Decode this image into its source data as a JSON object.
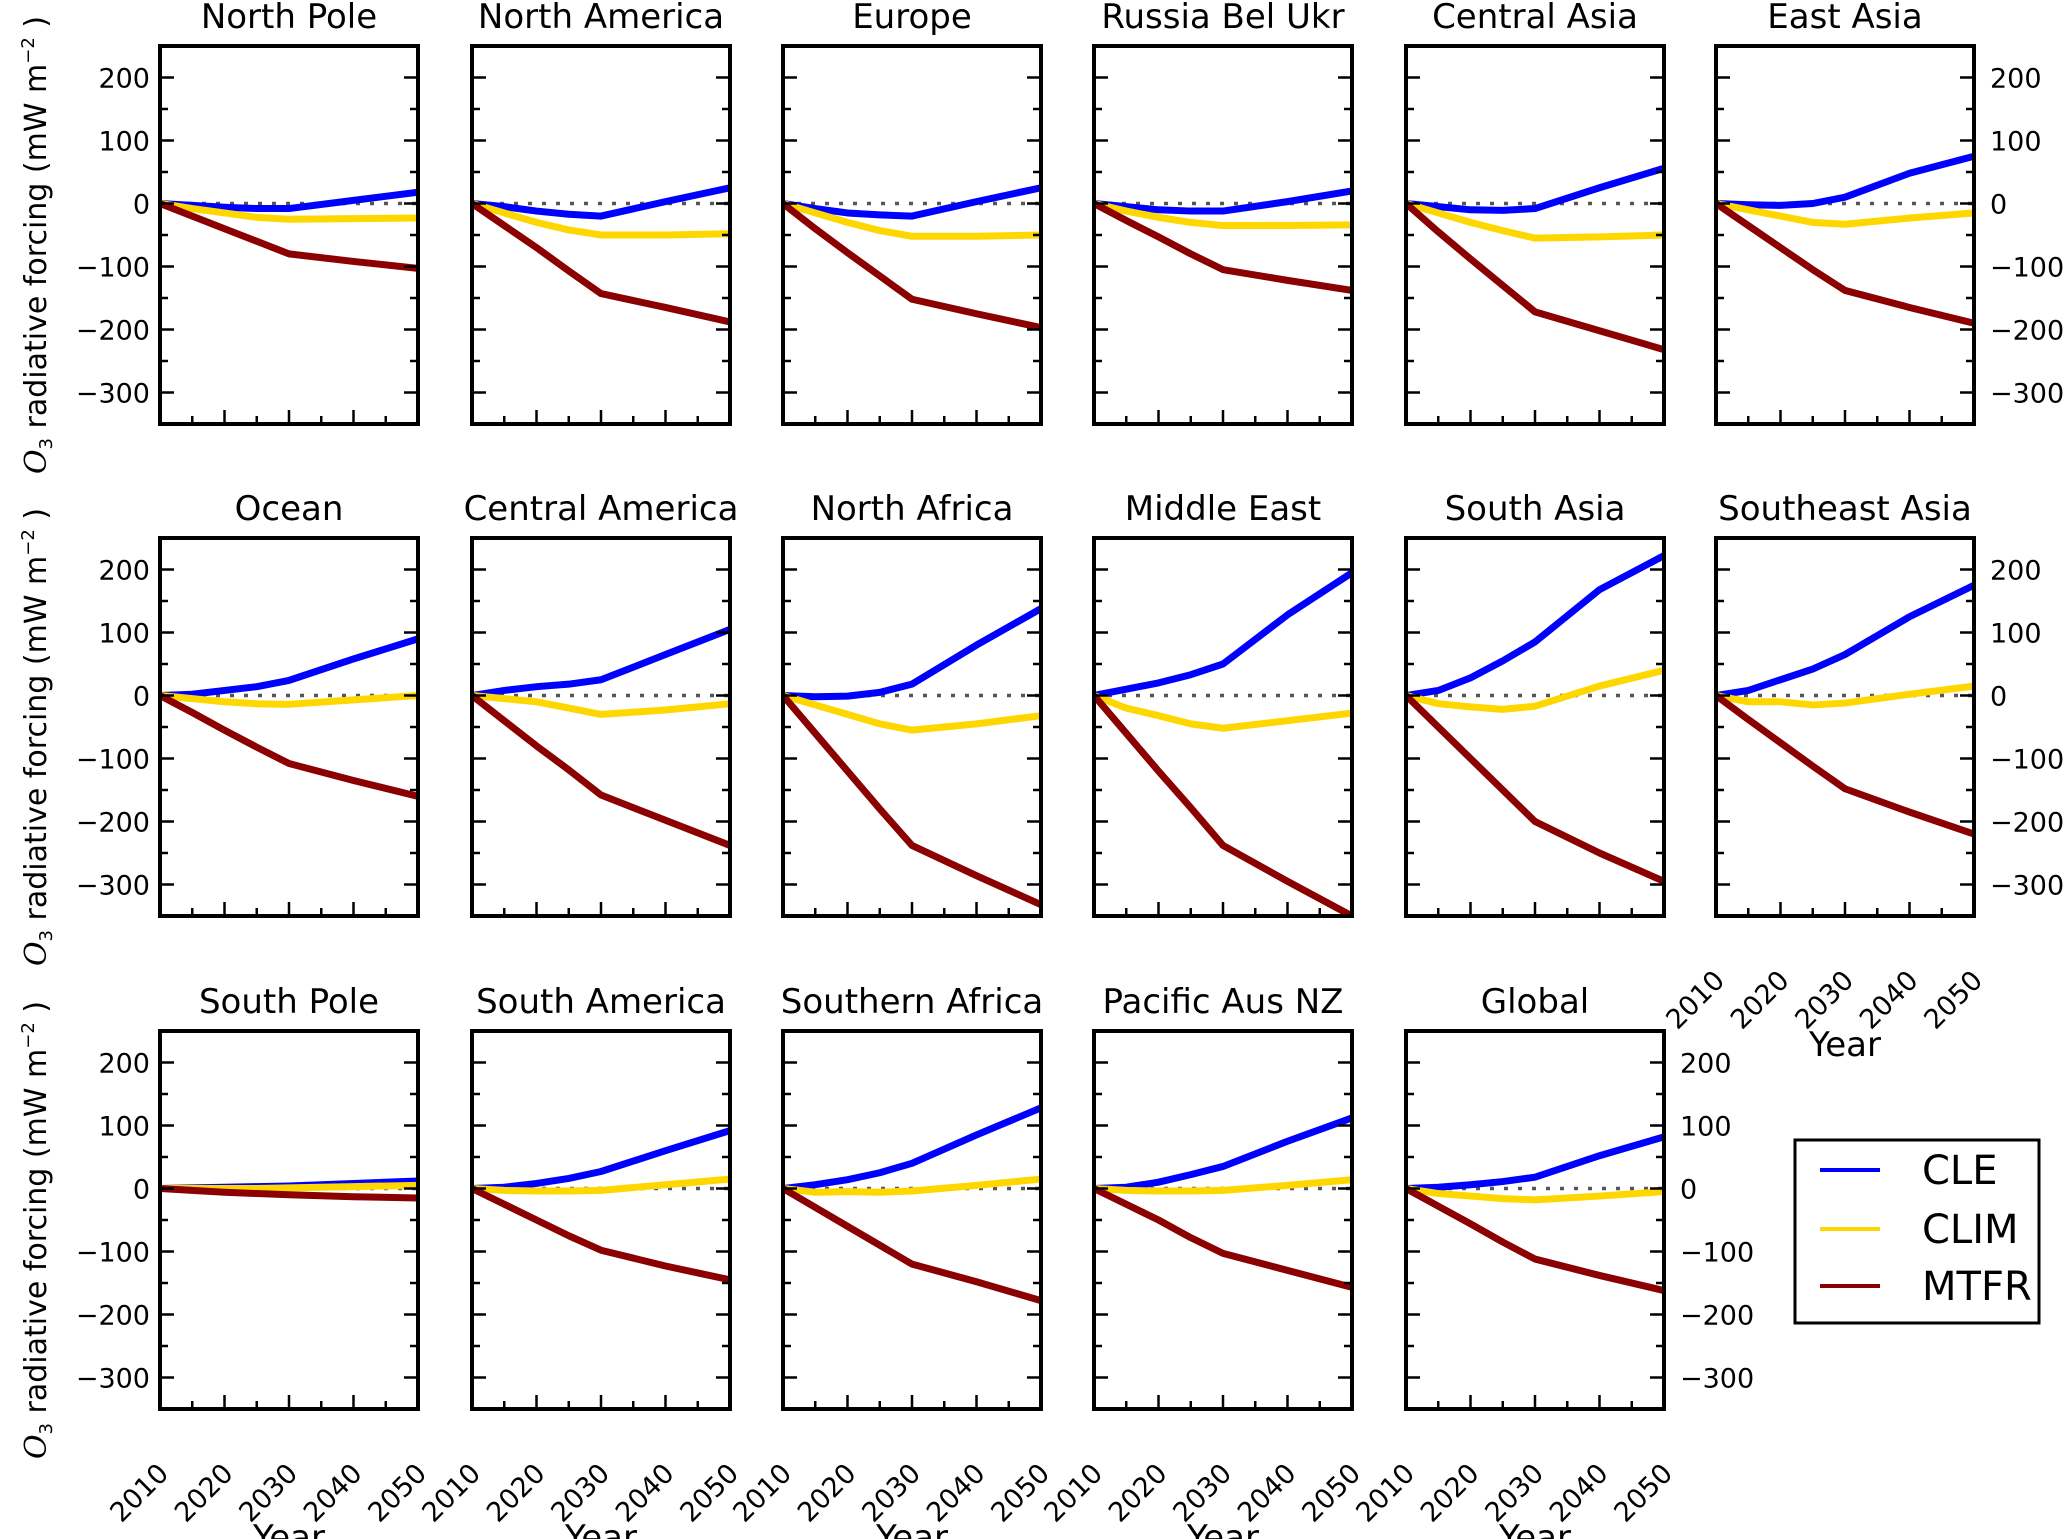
{
  "figure": {
    "ylabel_prefix": "O",
    "ylabel_sub": "3",
    "ylabel_text": "radiative forcing",
    "ylabel_unit": "(mW m",
    "ylabel_unit_sup": "−2",
    "ylabel_unit_close": ")",
    "xlabel": "Year"
  },
  "legend": {
    "location": "lower-right",
    "items": [
      {
        "label": "CLE",
        "color": "#0000ff"
      },
      {
        "label": "CLIM",
        "color": "#ffd700"
      },
      {
        "label": "MTFR",
        "color": "#8b0000"
      }
    ]
  },
  "chart_data": {
    "type": "line",
    "x": [
      2010,
      2015,
      2020,
      2025,
      2030,
      2040,
      2050
    ],
    "xticks": [
      "2010",
      "2020",
      "2030",
      "2040",
      "2050"
    ],
    "yticks": [
      "200",
      "100",
      "0",
      "−100",
      "−200",
      "−300"
    ],
    "ylim": [
      -350,
      250
    ],
    "xlim": [
      2010,
      2050
    ],
    "xlabel": "Year",
    "ylabel": "O3 radiative forcing (mW m^-2)",
    "reference_line": {
      "y": 0,
      "style": "dotted",
      "color": "#555555"
    },
    "series_colors": {
      "CLE": "#0000ff",
      "CLIM": "#ffd700",
      "MTFR": "#8b0000"
    },
    "panels": [
      {
        "title": "North Pole",
        "row": 0,
        "col": 0,
        "series": [
          {
            "name": "CLE",
            "values": [
              0,
              -3,
              -6,
              -8,
              -8,
              5,
              18
            ]
          },
          {
            "name": "CLIM",
            "values": [
              0,
              -8,
              -15,
              -22,
              -25,
              -24,
              -23
            ]
          },
          {
            "name": "MTFR",
            "values": [
              0,
              -20,
              -40,
              -60,
              -80,
              -92,
              -103
            ]
          }
        ]
      },
      {
        "title": "North America",
        "row": 0,
        "col": 1,
        "series": [
          {
            "name": "CLE",
            "values": [
              0,
              -5,
              -12,
              -17,
              -20,
              3,
              25
            ]
          },
          {
            "name": "CLIM",
            "values": [
              0,
              -15,
              -30,
              -42,
              -50,
              -50,
              -48
            ]
          },
          {
            "name": "MTFR",
            "values": [
              0,
              -35,
              -70,
              -107,
              -143,
              -165,
              -188
            ]
          }
        ]
      },
      {
        "title": "Europe",
        "row": 0,
        "col": 2,
        "series": [
          {
            "name": "CLE",
            "values": [
              0,
              -8,
              -15,
              -18,
              -20,
              3,
              25
            ]
          },
          {
            "name": "CLIM",
            "values": [
              0,
              -15,
              -30,
              -43,
              -52,
              -52,
              -50
            ]
          },
          {
            "name": "MTFR",
            "values": [
              0,
              -40,
              -78,
              -115,
              -152,
              -175,
              -197
            ]
          }
        ]
      },
      {
        "title": "Russia Bel Ukr",
        "row": 0,
        "col": 3,
        "series": [
          {
            "name": "CLE",
            "values": [
              0,
              -5,
              -10,
              -12,
              -12,
              3,
              20
            ]
          },
          {
            "name": "CLIM",
            "values": [
              0,
              -12,
              -22,
              -30,
              -35,
              -35,
              -34
            ]
          },
          {
            "name": "MTFR",
            "values": [
              0,
              -27,
              -53,
              -80,
              -105,
              -122,
              -138
            ]
          }
        ]
      },
      {
        "title": "Central Asia",
        "row": 0,
        "col": 4,
        "series": [
          {
            "name": "CLE",
            "values": [
              0,
              -5,
              -10,
              -11,
              -8,
              25,
              56
            ]
          },
          {
            "name": "CLIM",
            "values": [
              0,
              -15,
              -30,
              -43,
              -55,
              -53,
              -50
            ]
          },
          {
            "name": "MTFR",
            "values": [
              0,
              -45,
              -88,
              -130,
              -172,
              -202,
              -232
            ]
          }
        ]
      },
      {
        "title": "East Asia",
        "row": 0,
        "col": 5,
        "series": [
          {
            "name": "CLE",
            "values": [
              0,
              -2,
              -3,
              0,
              10,
              48,
              75
            ]
          },
          {
            "name": "CLIM",
            "values": [
              0,
              -10,
              -20,
              -30,
              -33,
              -23,
              -15
            ]
          },
          {
            "name": "MTFR",
            "values": [
              0,
              -35,
              -70,
              -105,
              -138,
              -165,
              -190
            ]
          }
        ]
      },
      {
        "title": "Ocean",
        "row": 1,
        "col": 0,
        "series": [
          {
            "name": "CLE",
            "values": [
              0,
              2,
              8,
              14,
              24,
              58,
              90
            ]
          },
          {
            "name": "CLIM",
            "values": [
              0,
              -5,
              -10,
              -13,
              -14,
              -7,
              0
            ]
          },
          {
            "name": "MTFR",
            "values": [
              0,
              -27,
              -55,
              -82,
              -108,
              -135,
              -160
            ]
          }
        ]
      },
      {
        "title": "Central America",
        "row": 1,
        "col": 1,
        "series": [
          {
            "name": "CLE",
            "values": [
              0,
              8,
              14,
              18,
              25,
              65,
              105
            ]
          },
          {
            "name": "CLIM",
            "values": [
              0,
              -5,
              -10,
              -20,
              -30,
              -23,
              -13
            ]
          },
          {
            "name": "MTFR",
            "values": [
              0,
              -40,
              -80,
              -118,
              -158,
              -198,
              -238
            ]
          }
        ]
      },
      {
        "title": "North Africa",
        "row": 1,
        "col": 2,
        "series": [
          {
            "name": "CLE",
            "values": [
              0,
              -2,
              -1,
              5,
              18,
              80,
              138
            ]
          },
          {
            "name": "CLIM",
            "values": [
              0,
              -15,
              -30,
              -45,
              -55,
              -45,
              -32
            ]
          },
          {
            "name": "MTFR",
            "values": [
              0,
              -60,
              -120,
              -180,
              -238,
              -286,
              -332
            ]
          }
        ]
      },
      {
        "title": "Middle East",
        "row": 1,
        "col": 3,
        "series": [
          {
            "name": "CLE",
            "values": [
              0,
              10,
              20,
              33,
              50,
              128,
              195
            ]
          },
          {
            "name": "CLIM",
            "values": [
              0,
              -20,
              -32,
              -45,
              -52,
              -40,
              -28
            ]
          },
          {
            "name": "MTFR",
            "values": [
              0,
              -60,
              -120,
              -178,
              -238,
              -295,
              -350
            ]
          }
        ]
      },
      {
        "title": "South Asia",
        "row": 1,
        "col": 4,
        "series": [
          {
            "name": "CLE",
            "values": [
              0,
              8,
              28,
              55,
              85,
              168,
              222
            ]
          },
          {
            "name": "CLIM",
            "values": [
              0,
              -13,
              -18,
              -22,
              -17,
              15,
              40
            ]
          },
          {
            "name": "MTFR",
            "values": [
              0,
              -50,
              -100,
              -150,
              -200,
              -250,
              -295
            ]
          }
        ]
      },
      {
        "title": "Southeast Asia",
        "row": 1,
        "col": 5,
        "series": [
          {
            "name": "CLE",
            "values": [
              0,
              8,
              25,
              42,
              65,
              125,
              175
            ]
          },
          {
            "name": "CLIM",
            "values": [
              0,
              -10,
              -10,
              -15,
              -12,
              2,
              15
            ]
          },
          {
            "name": "MTFR",
            "values": [
              0,
              -38,
              -75,
              -112,
              -148,
              -185,
              -220
            ]
          }
        ]
      },
      {
        "title": "South Pole",
        "row": 2,
        "col": 0,
        "series": [
          {
            "name": "CLE",
            "values": [
              0,
              1,
              2,
              3,
              4,
              8,
              12
            ]
          },
          {
            "name": "CLIM",
            "values": [
              0,
              0,
              0,
              0,
              1,
              3,
              5
            ]
          },
          {
            "name": "MTFR",
            "values": [
              0,
              -3,
              -6,
              -8,
              -10,
              -13,
              -15
            ]
          }
        ]
      },
      {
        "title": "South America",
        "row": 2,
        "col": 1,
        "series": [
          {
            "name": "CLE",
            "values": [
              0,
              2,
              8,
              16,
              27,
              60,
              92
            ]
          },
          {
            "name": "CLIM",
            "values": [
              0,
              -3,
              -4,
              -4,
              -3,
              6,
              15
            ]
          },
          {
            "name": "MTFR",
            "values": [
              0,
              -25,
              -50,
              -75,
              -98,
              -123,
              -145
            ]
          }
        ]
      },
      {
        "title": "Southern Africa",
        "row": 2,
        "col": 2,
        "series": [
          {
            "name": "CLE",
            "values": [
              0,
              6,
              14,
              25,
              40,
              85,
              128
            ]
          },
          {
            "name": "CLIM",
            "values": [
              0,
              -6,
              -5,
              -6,
              -4,
              5,
              15
            ]
          },
          {
            "name": "MTFR",
            "values": [
              0,
              -30,
              -60,
              -90,
              -120,
              -148,
              -178
            ]
          }
        ]
      },
      {
        "title": "Pacific Aus NZ",
        "row": 2,
        "col": 3,
        "series": [
          {
            "name": "CLE",
            "values": [
              0,
              2,
              10,
              22,
              35,
              75,
              112
            ]
          },
          {
            "name": "CLIM",
            "values": [
              0,
              -3,
              -4,
              -4,
              -3,
              5,
              14
            ]
          },
          {
            "name": "MTFR",
            "values": [
              0,
              -25,
              -50,
              -78,
              -103,
              -130,
              -157
            ]
          }
        ]
      },
      {
        "title": "Global",
        "row": 2,
        "col": 4,
        "series": [
          {
            "name": "CLE",
            "values": [
              0,
              2,
              6,
              11,
              18,
              52,
              82
            ]
          },
          {
            "name": "CLIM",
            "values": [
              0,
              -8,
              -12,
              -16,
              -18,
              -12,
              -5
            ]
          },
          {
            "name": "MTFR",
            "values": [
              0,
              -28,
              -56,
              -85,
              -112,
              -138,
              -162
            ]
          }
        ]
      }
    ]
  }
}
